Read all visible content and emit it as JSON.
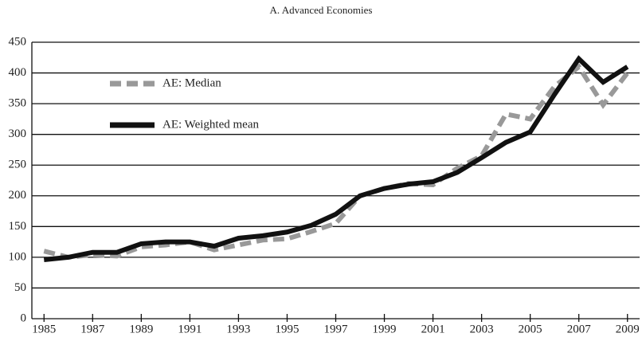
{
  "chart_data": {
    "type": "line",
    "title": "A. Advanced Economies",
    "x": [
      1985,
      1986,
      1987,
      1988,
      1989,
      1990,
      1991,
      1992,
      1993,
      1994,
      1995,
      1996,
      1997,
      1998,
      1999,
      2000,
      2001,
      2002,
      2003,
      2004,
      2005,
      2006,
      2007,
      2008,
      2009
    ],
    "series": [
      {
        "name": "AE: Median",
        "color": "#999999",
        "dashed": true,
        "values": [
          110,
          100,
          104,
          102,
          117,
          120,
          125,
          112,
          120,
          128,
          130,
          142,
          155,
          200,
          212,
          220,
          218,
          245,
          265,
          333,
          325,
          378,
          410,
          348,
          400
        ]
      },
      {
        "name": "AE: Weighted mean",
        "color": "#111111",
        "dashed": false,
        "values": [
          96,
          100,
          108,
          108,
          122,
          125,
          125,
          118,
          131,
          135,
          141,
          152,
          170,
          200,
          212,
          219,
          223,
          238,
          262,
          287,
          304,
          365,
          423,
          385,
          410
        ]
      }
    ],
    "xlim": [
      1984.5,
      2009.5
    ],
    "xticks": [
      1985,
      1987,
      1989,
      1991,
      1993,
      1995,
      1997,
      1999,
      2001,
      2003,
      2005,
      2007,
      2009
    ],
    "ylim": [
      0,
      450
    ],
    "yticks": [
      0,
      50,
      100,
      150,
      200,
      250,
      300,
      350,
      400,
      450
    ],
    "grid": true,
    "legend": "upper left"
  }
}
